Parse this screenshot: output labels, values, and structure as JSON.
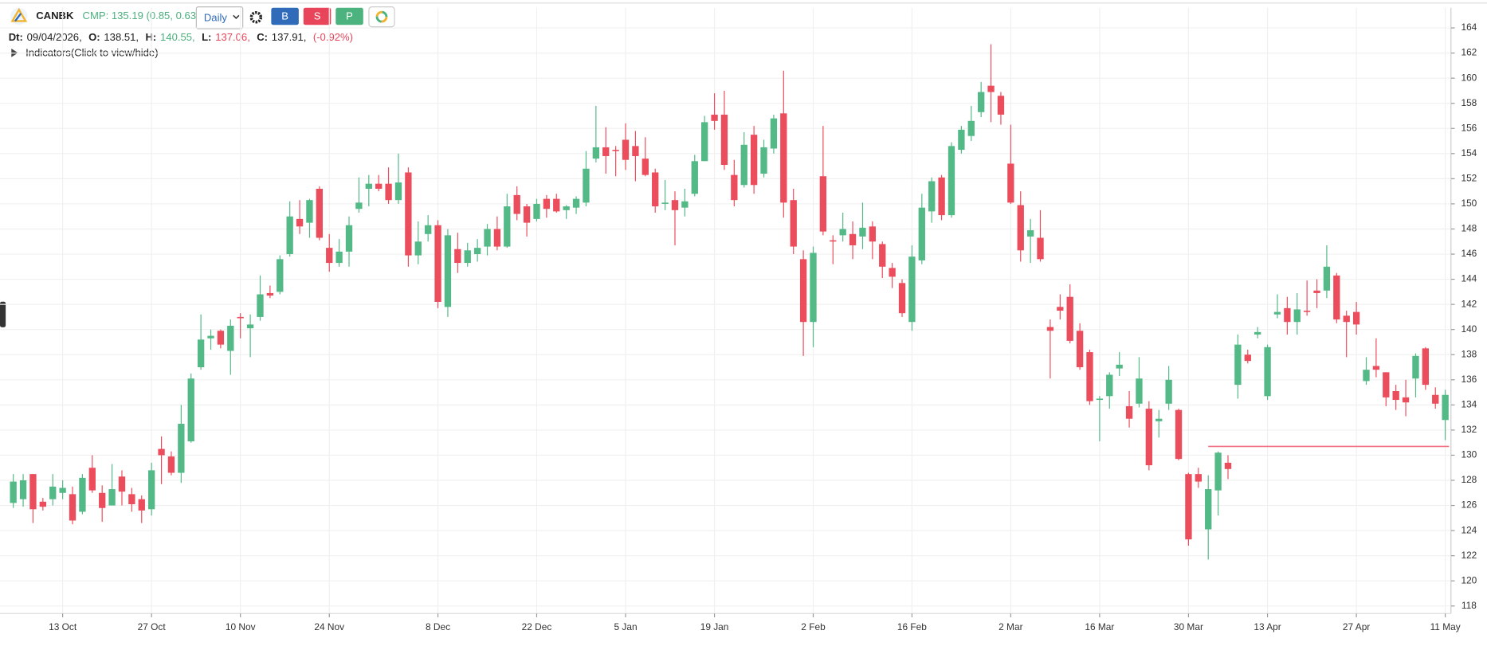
{
  "header": {
    "symbol": "CANBK",
    "cmp": "CMP: 135.19 (0.85, 0.63%)",
    "interval": "Daily",
    "buttons": [
      "B",
      "S",
      "P"
    ],
    "ohlc": [
      {
        "label": "Dt:",
        "value": "09/04/2026,"
      },
      {
        "label": "O:",
        "value": "138.51,"
      },
      {
        "label": "H:",
        "value": "140.55,"
      },
      {
        "label": "L:",
        "value": "137.06,"
      },
      {
        "label": "C:",
        "value": "137.91,"
      }
    ],
    "change": "(-0.92%)",
    "indicators": "Indicators(Click to view/hide)"
  },
  "chart_data": {
    "type": "candlestick",
    "up_color": "#53b987",
    "down_color": "#eb4d5c",
    "grid": true,
    "ylim": [
      117.4,
      165.6
    ],
    "yticks": [
      118,
      120,
      122,
      124,
      126,
      128,
      130,
      132,
      134,
      136,
      138,
      140,
      142,
      144,
      146,
      148,
      150,
      152,
      154,
      156,
      158,
      160,
      162,
      164
    ],
    "categories": [
      null,
      null,
      null,
      null,
      null,
      "13 Oct",
      null,
      null,
      null,
      null,
      null,
      null,
      null,
      null,
      "27 Oct",
      null,
      null,
      null,
      null,
      null,
      null,
      null,
      null,
      "10 Nov",
      null,
      null,
      null,
      null,
      null,
      null,
      null,
      null,
      "24 Nov",
      null,
      null,
      null,
      null,
      null,
      null,
      null,
      null,
      null,
      null,
      "8 Dec",
      null,
      null,
      null,
      null,
      null,
      null,
      null,
      null,
      null,
      "22 Dec",
      null,
      null,
      null,
      null,
      null,
      null,
      null,
      null,
      "5 Jan",
      null,
      null,
      null,
      null,
      null,
      null,
      null,
      null,
      "19 Jan",
      null,
      null,
      null,
      null,
      null,
      null,
      null,
      null,
      null,
      "2 Feb",
      null,
      null,
      null,
      null,
      null,
      null,
      null,
      null,
      null,
      "16 Feb",
      null,
      null,
      null,
      null,
      null,
      null,
      null,
      null,
      null,
      "2 Mar",
      null,
      null,
      null,
      null,
      null,
      null,
      null,
      null,
      "16 Mar",
      null,
      null,
      null,
      null,
      null,
      null,
      null,
      null,
      "30 Mar",
      null,
      null,
      null,
      null,
      null,
      null,
      null,
      "13 Apr",
      null,
      null,
      null,
      null,
      null,
      null,
      null,
      null,
      "27 Apr",
      null,
      null,
      null,
      null,
      null,
      null,
      null,
      null,
      "11 May"
    ],
    "open": [
      126.2,
      126.5,
      128.5,
      126.3,
      126.5,
      127,
      126.9,
      125.5,
      129,
      127,
      126,
      128.3,
      126.9,
      126.5,
      125.7,
      130.5,
      129.9,
      128.6,
      131.1,
      137,
      139.3,
      139.9,
      138.3,
      141,
      140.1,
      141,
      142.9,
      143,
      146,
      148.8,
      148.5,
      151.2,
      146.5,
      145.3,
      146.2,
      149.6,
      151.2,
      151.6,
      151.6,
      150.3,
      152.5,
      145.9,
      147.6,
      148.3,
      141.8,
      146.4,
      145.3,
      146,
      146.6,
      148,
      146.6,
      150.7,
      149.8,
      148.8,
      150.4,
      150.4,
      149.5,
      149.7,
      150.1,
      153.6,
      154.5,
      154.3,
      155.1,
      154.6,
      153.6,
      152.5,
      150,
      150.3,
      149.7,
      150.8,
      153.4,
      157.1,
      157.1,
      152.3,
      151.5,
      155.5,
      152.4,
      154.4,
      157.2,
      150.3,
      145.6,
      140.6,
      152.2,
      147.1,
      147.5,
      147.6,
      147.4,
      148.2,
      146.8,
      144.9,
      143.7,
      140.6,
      145.5,
      149.4,
      152.1,
      149.1,
      154.3,
      155.4,
      157.3,
      159.4,
      158.6,
      153.2,
      149.9,
      147.4,
      147.3,
      140.2,
      141.8,
      142.6,
      139.9,
      138.2,
      134.4,
      134.7,
      136.9,
      133.9,
      134.1,
      133.7,
      132.7,
      134.1,
      133.6,
      128.5,
      128.5,
      124.1,
      127.2,
      129.4,
      135.6,
      138,
      139.6,
      134.7,
      141.2,
      141.7,
      140.6,
      141.5,
      143.1,
      143.1,
      144.3,
      141.1,
      141.4,
      135.9,
      137.1,
      136.6,
      135.1,
      134.6,
      136.1,
      138.5,
      134.8,
      132.8
    ],
    "high": [
      128.5,
      128.5,
      128.5,
      126.6,
      128.5,
      128,
      127.5,
      128.5,
      130,
      127.6,
      129.3,
      128.8,
      127.4,
      126.8,
      129.4,
      131.5,
      130.3,
      134,
      136.5,
      141.2,
      140,
      140,
      140.8,
      141.3,
      141.2,
      144.3,
      143.5,
      145.9,
      150.2,
      150.3,
      150.4,
      151.4,
      147.6,
      147.2,
      149,
      152.1,
      152.3,
      152.3,
      152.9,
      154,
      152.9,
      148.6,
      149.1,
      148.7,
      148,
      147.7,
      146.9,
      147.2,
      148.4,
      149,
      150.8,
      151.4,
      150,
      150.4,
      150.7,
      150.8,
      149.9,
      150.6,
      154.2,
      157.8,
      156.1,
      154.6,
      156.4,
      155.8,
      155.3,
      152.8,
      151.9,
      151,
      151.2,
      153.9,
      157,
      158.8,
      159,
      153.5,
      155.7,
      156.2,
      155.1,
      157.1,
      160.6,
      151.2,
      146.3,
      146.6,
      156.2,
      147.5,
      149.3,
      148.6,
      150.1,
      148.6,
      147,
      145.3,
      144,
      146.7,
      150.8,
      152.1,
      152.3,
      154.9,
      156.2,
      157.8,
      159.7,
      162.7,
      158.9,
      156.3,
      151,
      148.8,
      149.5,
      140.8,
      142.8,
      143.6,
      140.5,
      138.4,
      134.7,
      136.6,
      138.2,
      135.1,
      137.8,
      134.3,
      133.6,
      137.1,
      133.7,
      128.6,
      129,
      128.4,
      130.3,
      130,
      139.6,
      138.4,
      140.2,
      138.8,
      142.8,
      142.6,
      142.9,
      143.9,
      144,
      146.7,
      144.5,
      141.5,
      142.2,
      137.8,
      139.3,
      136.6,
      135.6,
      136,
      138.1,
      138.6,
      135.4,
      135.2
    ],
    "low": [
      125.8,
      125.9,
      124.6,
      125.6,
      126,
      126.5,
      124.5,
      125.3,
      127,
      124.7,
      126,
      126,
      125.5,
      124.6,
      125.2,
      127.7,
      128.4,
      127.8,
      131,
      136.8,
      138.4,
      138.5,
      136.4,
      139.3,
      137.8,
      140.7,
      142.5,
      142.8,
      145.8,
      147.6,
      147.3,
      147.1,
      144.6,
      145,
      145,
      149.3,
      149.8,
      151,
      150,
      150,
      145,
      145.2,
      147,
      141.7,
      141,
      144.5,
      145,
      145.4,
      145.9,
      146.3,
      146.5,
      148.7,
      147.4,
      148.6,
      148.9,
      149.3,
      148.8,
      149.2,
      149.8,
      153.3,
      152.4,
      152.2,
      152.7,
      151.8,
      152.2,
      149.3,
      149.5,
      146.7,
      149,
      150.6,
      153.4,
      155.9,
      152.7,
      149.8,
      151.3,
      150.8,
      152.1,
      154,
      148.9,
      146,
      137.9,
      138.6,
      147.5,
      145.2,
      147,
      145.6,
      146.4,
      145.6,
      144.1,
      143.3,
      141,
      139.9,
      145.2,
      148.5,
      148.7,
      148.9,
      154,
      155,
      156.9,
      156.5,
      156.3,
      150,
      145.4,
      145.3,
      145.4,
      136.1,
      140.8,
      138.9,
      136.8,
      134,
      131.1,
      133.7,
      136.3,
      132.2,
      133.8,
      128.8,
      131.4,
      133.6,
      129.6,
      122.8,
      127.4,
      121.7,
      125.2,
      128.1,
      134.5,
      137.3,
      139.3,
      134.4,
      140.9,
      139.6,
      139.6,
      141.1,
      141.7,
      142.5,
      140.5,
      137.8,
      139.6,
      135.6,
      136.2,
      133.9,
      133.6,
      133.1,
      134.6,
      135.2,
      133.7,
      131.2
    ],
    "close": [
      127.9,
      128,
      125.7,
      125.9,
      127.5,
      127.4,
      124.8,
      128.2,
      127.2,
      125.8,
      127.3,
      127.1,
      126.1,
      125.6,
      128.8,
      130,
      128.6,
      132.5,
      136.1,
      139.2,
      139.5,
      138.8,
      140.3,
      140.9,
      140.4,
      142.8,
      142.7,
      145.6,
      149,
      148.2,
      150.3,
      147.3,
      145.3,
      146.2,
      148.3,
      150.1,
      151.6,
      151.2,
      150.3,
      151.7,
      145.9,
      147,
      148.3,
      142.2,
      147.5,
      145.3,
      146.3,
      146.5,
      148,
      146.6,
      149.8,
      149.2,
      148.5,
      150,
      149.6,
      149.4,
      149.8,
      150.4,
      152.8,
      154.5,
      153.8,
      154.2,
      153.5,
      153.8,
      152.3,
      149.8,
      150.1,
      149.5,
      150.2,
      153.4,
      156.5,
      156.6,
      153.1,
      150.3,
      154.7,
      151.5,
      154.5,
      156.8,
      150.1,
      146.6,
      140.6,
      146.1,
      147.8,
      147,
      148,
      146.7,
      148.1,
      147,
      145,
      144.2,
      141.3,
      145.8,
      149.7,
      151.8,
      149.1,
      154.6,
      155.9,
      156.6,
      158.9,
      158.9,
      157.1,
      150.1,
      146.3,
      147.9,
      145.6,
      139.9,
      141.5,
      139.1,
      137,
      134.3,
      134.5,
      136.4,
      137.2,
      132.9,
      136.1,
      129.2,
      132.9,
      136,
      129.7,
      123.3,
      127.9,
      127.3,
      130.2,
      128.9,
      138.8,
      137.5,
      139.8,
      138.6,
      141.4,
      140.6,
      141.6,
      141.4,
      142.9,
      145,
      140.8,
      140.6,
      140.4,
      136.8,
      136.8,
      134.6,
      134.4,
      134.2,
      137.9,
      135.6,
      134.1,
      134.8
    ],
    "price_line": {
      "value": 130.7,
      "color": "#f07080"
    }
  }
}
